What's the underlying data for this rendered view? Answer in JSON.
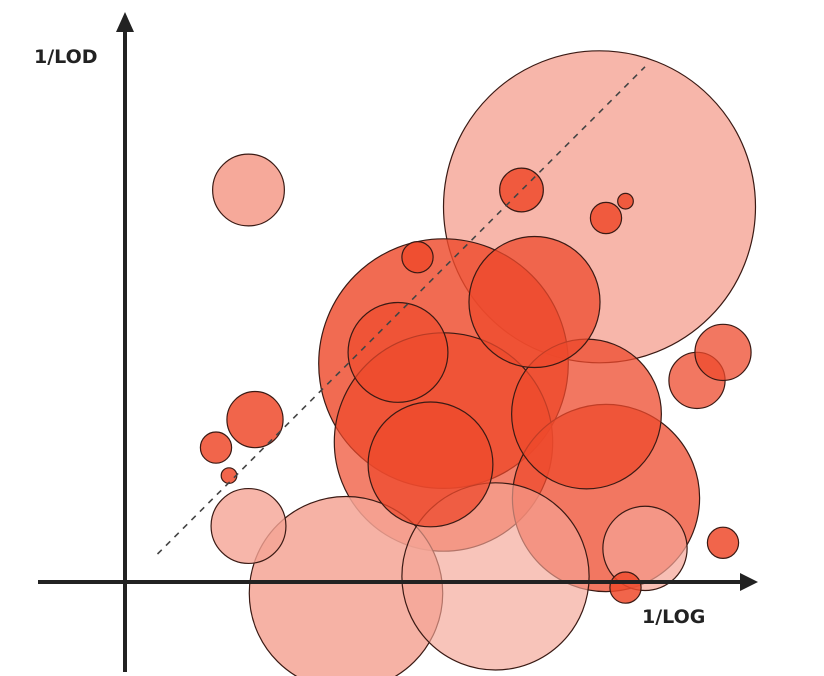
{
  "chart_data": {
    "type": "scatter",
    "encoding": "bubble",
    "xlabel": "1/LOG",
    "ylabel": "1/LOD",
    "grid": false,
    "legend": "none",
    "has_reference_line": true,
    "colors": {
      "bubble_fill": "#ee4a2c",
      "bubble_edge": "#3a1a14",
      "axis": "#222222",
      "reference_line": "#444444"
    },
    "bubbles": [
      {
        "x": 0.73,
        "y": 0.67,
        "size": 1.0,
        "shade": "#f5a495",
        "alpha": 0.8
      },
      {
        "x": 0.49,
        "y": 0.39,
        "size": 0.8,
        "shade": "#ee4a2c",
        "alpha": 0.82
      },
      {
        "x": 0.49,
        "y": 0.25,
        "size": 0.7,
        "shade": "#ee4a2c",
        "alpha": 0.7
      },
      {
        "x": 0.34,
        "y": -0.02,
        "size": 0.62,
        "shade": "#f5a495",
        "alpha": 0.85
      },
      {
        "x": 0.74,
        "y": 0.15,
        "size": 0.6,
        "shade": "#ee4a2c",
        "alpha": 0.75
      },
      {
        "x": 0.57,
        "y": 0.01,
        "size": 0.6,
        "shade": "#f5a495",
        "alpha": 0.65
      },
      {
        "x": 0.71,
        "y": 0.3,
        "size": 0.48,
        "shade": "#ee4a2c",
        "alpha": 0.75
      },
      {
        "x": 0.63,
        "y": 0.5,
        "size": 0.42,
        "shade": "#ee4a2c",
        "alpha": 0.75
      },
      {
        "x": 0.47,
        "y": 0.21,
        "size": 0.4,
        "shade": "#ee4a2c",
        "alpha": 0.75
      },
      {
        "x": 0.42,
        "y": 0.41,
        "size": 0.32,
        "shade": "#ee4a2c",
        "alpha": 0.7
      },
      {
        "x": 0.8,
        "y": 0.06,
        "size": 0.27,
        "shade": "#f5a495",
        "alpha": 0.7
      },
      {
        "x": 0.19,
        "y": 0.1,
        "size": 0.24,
        "shade": "#f5a495",
        "alpha": 0.8
      },
      {
        "x": 0.19,
        "y": 0.7,
        "size": 0.23,
        "shade": "#f5a495",
        "alpha": 0.95
      },
      {
        "x": 0.2,
        "y": 0.29,
        "size": 0.18,
        "shade": "#ee4a2c",
        "alpha": 0.85
      },
      {
        "x": 0.88,
        "y": 0.36,
        "size": 0.18,
        "shade": "#ee4a2c",
        "alpha": 0.75
      },
      {
        "x": 0.92,
        "y": 0.41,
        "size": 0.18,
        "shade": "#ee4a2c",
        "alpha": 0.75
      },
      {
        "x": 0.61,
        "y": 0.7,
        "size": 0.14,
        "shade": "#ee4a2c",
        "alpha": 0.85
      },
      {
        "x": 0.14,
        "y": 0.24,
        "size": 0.1,
        "shade": "#ee4a2c",
        "alpha": 0.85
      },
      {
        "x": 0.92,
        "y": 0.07,
        "size": 0.1,
        "shade": "#ee4a2c",
        "alpha": 0.85
      },
      {
        "x": 0.77,
        "y": -0.01,
        "size": 0.1,
        "shade": "#ee4a2c",
        "alpha": 0.85
      },
      {
        "x": 0.74,
        "y": 0.65,
        "size": 0.1,
        "shade": "#ee4a2c",
        "alpha": 0.85
      },
      {
        "x": 0.45,
        "y": 0.58,
        "size": 0.1,
        "shade": "#ee4a2c",
        "alpha": 0.85
      },
      {
        "x": 0.16,
        "y": 0.19,
        "size": 0.05,
        "shade": "#ee4a2c",
        "alpha": 0.85
      },
      {
        "x": 0.77,
        "y": 0.68,
        "size": 0.05,
        "shade": "#ee4a2c",
        "alpha": 0.85
      }
    ],
    "reference_line": {
      "x": [
        0.05,
        0.8
      ],
      "y": [
        0.05,
        0.92
      ]
    }
  }
}
